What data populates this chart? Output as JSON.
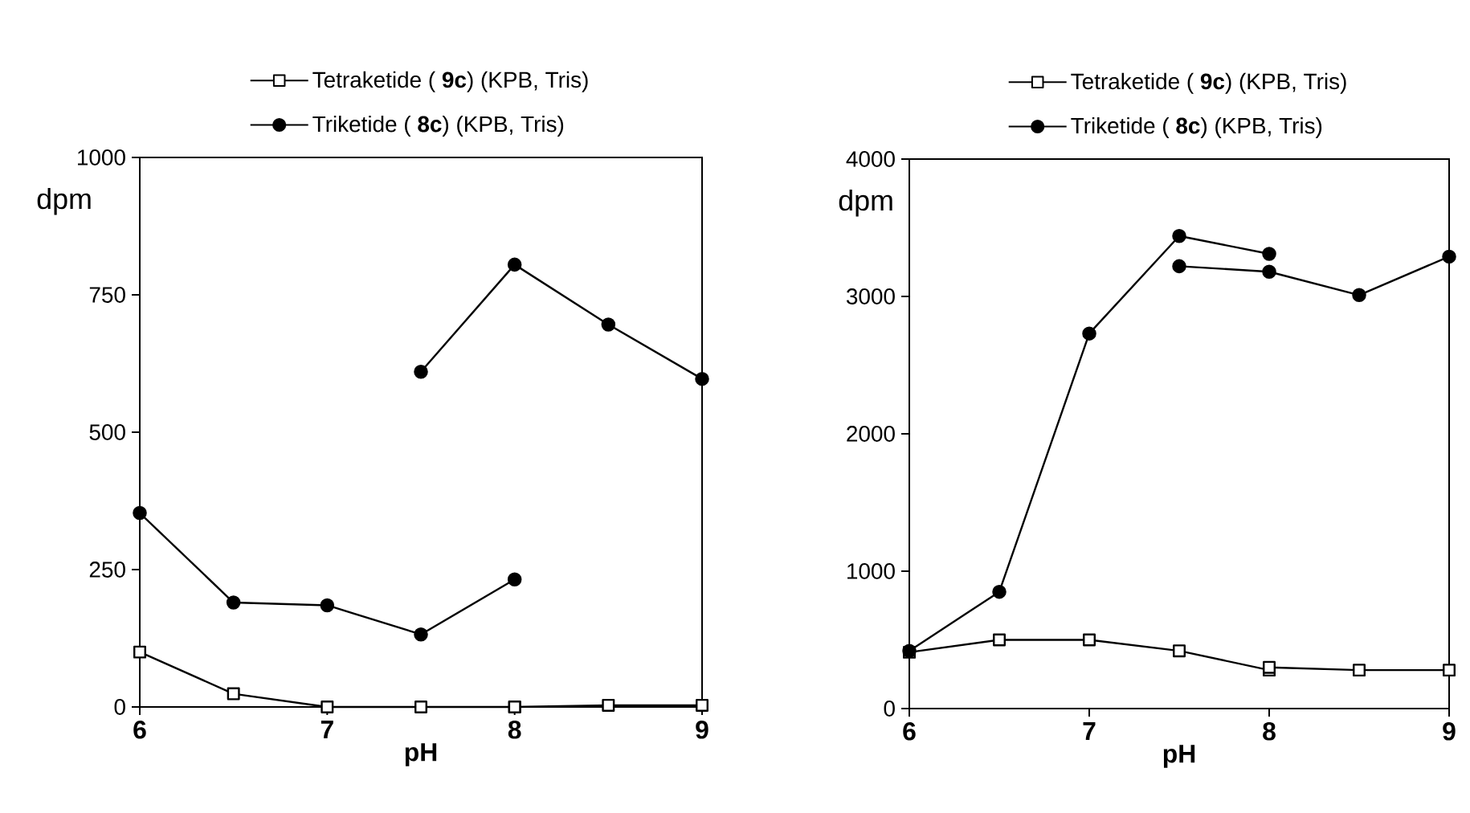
{
  "chart_data": [
    {
      "type": "line",
      "xlabel": "pH",
      "ylabel": "dpm",
      "xlim": [
        6,
        9
      ],
      "xticks": [
        6,
        7,
        8,
        9
      ],
      "ylim": [
        0,
        1000
      ],
      "yticks": [
        0,
        250,
        500,
        750,
        1000
      ],
      "legend": "top",
      "line_style": "solid",
      "grid": false,
      "series": [
        {
          "name": "Tetraketide ( **9c**) (KPB, Tris)",
          "color": "#000000",
          "marker": "square",
          "x": [
            6,
            6.5,
            7,
            7.5,
            8
          ],
          "values": [
            100,
            24,
            0,
            0,
            0
          ]
        },
        {
          "name": "Triketide ( **8c**) (KPB, Tris)",
          "color": "#000000",
          "marker": "circle",
          "x": [
            6,
            6.5,
            7,
            7.5,
            8
          ],
          "values": [
            353,
            190,
            185,
            132,
            232
          ]
        },
        {
          "color": "#000000",
          "marker": "square",
          "x": [
            8,
            8.5,
            9
          ],
          "values": [
            0,
            3,
            3
          ]
        },
        {
          "color": "#000000",
          "marker": "circle",
          "x": [
            7.5,
            8,
            8.5,
            9
          ],
          "values": [
            610,
            805,
            696,
            597
          ]
        }
      ]
    },
    {
      "type": "line",
      "xlabel": "pH",
      "ylabel": "dpm",
      "xlim": [
        6,
        9
      ],
      "xticks": [
        6,
        7,
        8,
        9
      ],
      "ylim": [
        0,
        4000
      ],
      "yticks": [
        0,
        1000,
        2000,
        3000,
        4000
      ],
      "legend": "top",
      "line_style": "solid",
      "grid": false,
      "series": [
        {
          "name": "Tetraketide ( **9c**) (KPB, Tris)",
          "color": "#000000",
          "marker": "square",
          "x": [
            6,
            6.5,
            7,
            7.5,
            8
          ],
          "values": [
            410,
            500,
            500,
            420,
            280
          ]
        },
        {
          "name": "Triketide ( **8c**) (KPB, Tris)",
          "color": "#000000",
          "marker": "circle",
          "x": [
            6,
            6.5,
            7,
            7.5,
            8
          ],
          "values": [
            420,
            850,
            2730,
            3440,
            3310
          ]
        },
        {
          "color": "#000000",
          "marker": "square",
          "x": [
            8,
            8.5,
            9
          ],
          "values": [
            300,
            280,
            280
          ]
        },
        {
          "color": "#000000",
          "marker": "circle",
          "x": [
            7.5,
            8,
            8.5,
            9
          ],
          "values": [
            3220,
            3180,
            3010,
            3290
          ]
        }
      ]
    }
  ]
}
